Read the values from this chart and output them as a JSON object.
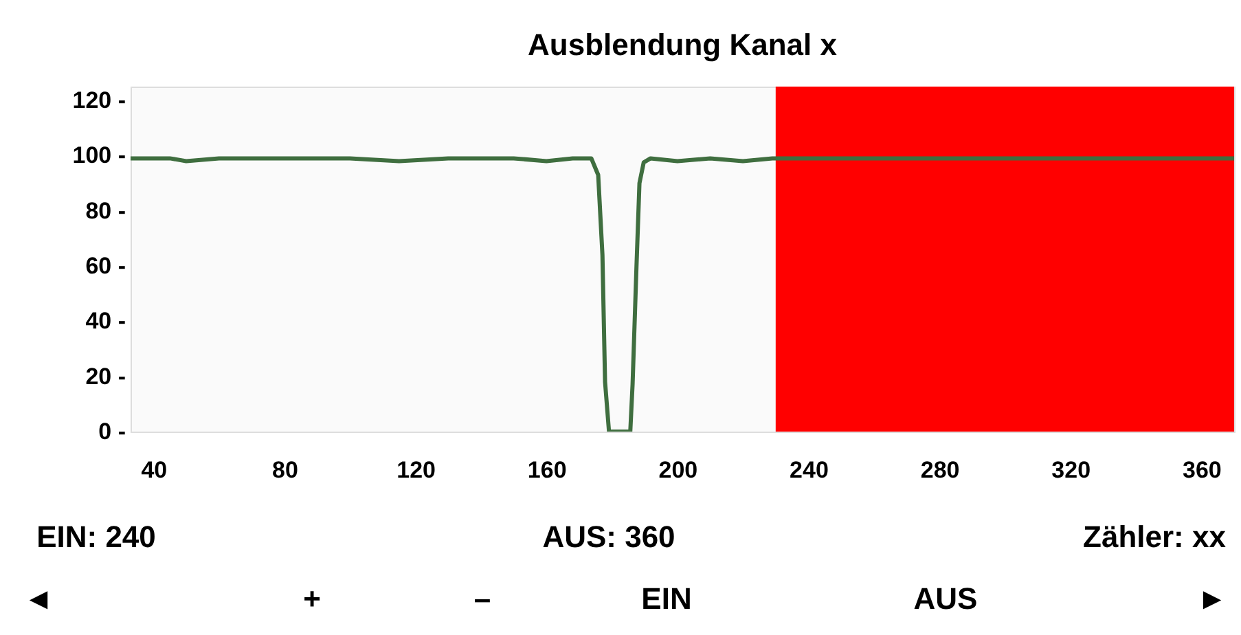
{
  "chart_data": {
    "type": "line",
    "title": "Ausblendung Kanal x",
    "x": [
      33,
      45,
      50,
      60,
      70,
      80,
      100,
      115,
      130,
      150,
      160,
      168,
      173.7,
      175.8,
      177.1,
      177.9,
      179.1,
      185.6,
      186.3,
      187.5,
      188.4,
      189.7,
      191.8,
      200,
      210,
      220,
      229,
      250,
      300,
      370
    ],
    "series": [
      {
        "color": "#3f6e3f",
        "values": [
          99,
          99,
          98,
          99,
          99,
          99,
          99,
          98,
          99,
          99,
          98,
          99,
          99,
          93,
          64,
          18,
          0,
          0,
          17,
          60,
          90,
          97.5,
          99,
          98,
          99,
          98,
          99,
          99,
          99,
          99
        ]
      }
    ],
    "xlim": [
      33,
      370
    ],
    "ylim": [
      0,
      125
    ],
    "xticks": [
      40,
      80,
      120,
      160,
      200,
      240,
      280,
      320,
      360
    ],
    "yticks": [
      {
        "value": 0,
        "label": "0 -"
      },
      {
        "value": 20,
        "label": "20 -"
      },
      {
        "value": 40,
        "label": "40 -"
      },
      {
        "value": 60,
        "label": "60 -"
      },
      {
        "value": 80,
        "label": "80 -"
      },
      {
        "value": 100,
        "label": "100 -"
      },
      {
        "value": 120,
        "label": "120 -"
      }
    ],
    "bands": [
      {
        "axis": "x",
        "from": 230,
        "to": 370,
        "color": "#ff0000"
      }
    ],
    "grid": false,
    "annotations": [
      "EIN: 240",
      "AUS: 360",
      "Zähler: xx",
      "◄",
      "+",
      "–",
      "EIN",
      "AUS",
      "►"
    ]
  }
}
